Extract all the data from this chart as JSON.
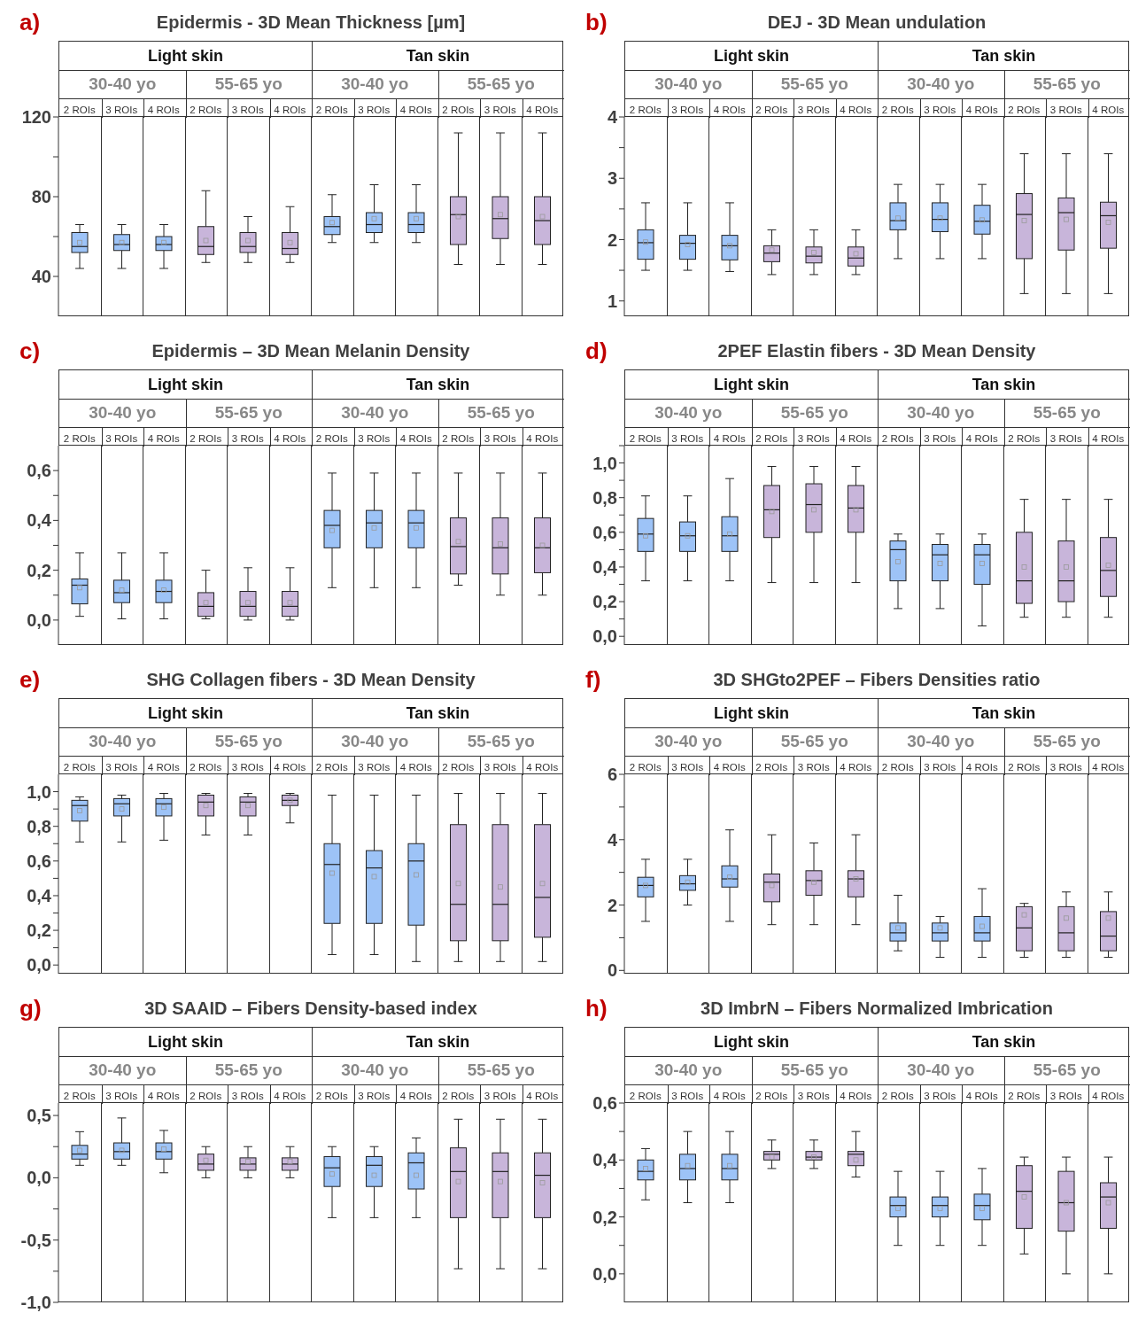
{
  "chart_data": [
    {
      "type": "box",
      "title": "Epidermis - 3D Mean Thickness [µm]",
      "annotations": [
        "a)",
        "Light skin",
        "Tan skin",
        "30-40 yo",
        "55-65 yo",
        "30-40 yo",
        "55-65 yo"
      ],
      "categories": [
        "2 ROIs",
        "3 ROIs",
        "4 ROIs",
        "2 ROIs",
        "3 ROIs",
        "4 ROIs",
        "2 ROIs",
        "3 ROIs",
        "4 ROIs",
        "2 ROIs",
        "3 ROIs",
        "4 ROIs"
      ],
      "ylim": [
        20,
        120
      ],
      "yticks": [
        40,
        {
          "value": 60,
          "label": null
        },
        80,
        {
          "value": 100,
          "label": null
        },
        120
      ],
      "series": [
        {
          "colors": [
            "#9dc3f7",
            "#9dc3f7",
            "#9dc3f7",
            "#c8b5da",
            "#c8b5da",
            "#c8b5da",
            "#9dc3f7",
            "#9dc3f7",
            "#9dc3f7",
            "#c8b5da",
            "#c8b5da",
            "#c8b5da"
          ],
          "boxes": [
            {
              "low": 44,
              "q1": 52,
              "median": 55,
              "q3": 62,
              "high": 66,
              "mean": 57
            },
            {
              "low": 44,
              "q1": 53,
              "median": 56,
              "q3": 61,
              "high": 66,
              "mean": 57
            },
            {
              "low": 44,
              "q1": 53,
              "median": 56,
              "q3": 60,
              "high": 66,
              "mean": 57
            },
            {
              "low": 47,
              "q1": 51,
              "median": 55,
              "q3": 65,
              "high": 83,
              "mean": 58
            },
            {
              "low": 47,
              "q1": 52,
              "median": 55,
              "q3": 62,
              "high": 70,
              "mean": 58
            },
            {
              "low": 47,
              "q1": 51,
              "median": 54,
              "q3": 62,
              "high": 75,
              "mean": 57
            },
            {
              "low": 57,
              "q1": 61,
              "median": 65,
              "q3": 70,
              "high": 81,
              "mean": 67
            },
            {
              "low": 57,
              "q1": 62,
              "median": 66,
              "q3": 72,
              "high": 86,
              "mean": 69
            },
            {
              "low": 57,
              "q1": 62,
              "median": 66,
              "q3": 72,
              "high": 86,
              "mean": 69
            },
            {
              "low": 46,
              "q1": 56,
              "median": 71,
              "q3": 80,
              "high": 112,
              "mean": 70
            },
            {
              "low": 46,
              "q1": 59,
              "median": 69,
              "q3": 80,
              "high": 112,
              "mean": 71
            },
            {
              "low": 46,
              "q1": 56,
              "median": 68,
              "q3": 80,
              "high": 112,
              "mean": 70
            }
          ]
        }
      ]
    },
    {
      "type": "box",
      "title": "DEJ - 3D Mean undulation",
      "annotations": [
        "b)",
        "Light skin",
        "Tan skin",
        "30-40 yo",
        "55-65 yo",
        "30-40 yo",
        "55-65 yo"
      ],
      "categories": [
        "2 ROIs",
        "3 ROIs",
        "4 ROIs",
        "2 ROIs",
        "3 ROIs",
        "4 ROIs",
        "2 ROIs",
        "3 ROIs",
        "4 ROIs",
        "2 ROIs",
        "3 ROIs",
        "4 ROIs"
      ],
      "ylim": [
        0.75,
        4
      ],
      "yticks": [
        1,
        {
          "value": 1.5,
          "label": null
        },
        2,
        {
          "value": 2.5,
          "label": null
        },
        3,
        {
          "value": 3.5,
          "label": null
        },
        4
      ],
      "series": [
        {
          "colors": [
            "#9dc3f7",
            "#9dc3f7",
            "#9dc3f7",
            "#c8b5da",
            "#c8b5da",
            "#c8b5da",
            "#9dc3f7",
            "#9dc3f7",
            "#9dc3f7",
            "#c8b5da",
            "#c8b5da",
            "#c8b5da"
          ],
          "boxes": [
            {
              "low": 1.5,
              "q1": 1.68,
              "median": 1.95,
              "q3": 2.16,
              "high": 2.6,
              "mean": 1.96
            },
            {
              "low": 1.5,
              "q1": 1.68,
              "median": 1.94,
              "q3": 2.07,
              "high": 2.6,
              "mean": 1.92
            },
            {
              "low": 1.48,
              "q1": 1.67,
              "median": 1.9,
              "q3": 2.07,
              "high": 2.6,
              "mean": 1.9
            },
            {
              "low": 1.43,
              "q1": 1.64,
              "median": 1.78,
              "q3": 1.9,
              "high": 2.16,
              "mean": 1.83
            },
            {
              "low": 1.43,
              "q1": 1.62,
              "median": 1.73,
              "q3": 1.88,
              "high": 2.16,
              "mean": 1.79
            },
            {
              "low": 1.43,
              "q1": 1.57,
              "median": 1.7,
              "q3": 1.88,
              "high": 2.16,
              "mean": 1.77
            },
            {
              "low": 1.69,
              "q1": 2.16,
              "median": 2.31,
              "q3": 2.6,
              "high": 2.9,
              "mean": 2.35
            },
            {
              "low": 1.69,
              "q1": 2.13,
              "median": 2.33,
              "q3": 2.6,
              "high": 2.9,
              "mean": 2.35
            },
            {
              "low": 1.69,
              "q1": 2.09,
              "median": 2.3,
              "q3": 2.56,
              "high": 2.9,
              "mean": 2.32
            },
            {
              "low": 1.12,
              "q1": 1.69,
              "median": 2.41,
              "q3": 2.75,
              "high": 3.4,
              "mean": 2.31
            },
            {
              "low": 1.12,
              "q1": 1.83,
              "median": 2.44,
              "q3": 2.68,
              "high": 3.4,
              "mean": 2.33
            },
            {
              "low": 1.12,
              "q1": 1.86,
              "median": 2.39,
              "q3": 2.61,
              "high": 3.4,
              "mean": 2.28
            }
          ]
        }
      ]
    },
    {
      "type": "box",
      "title": "Epidermis – 3D Mean Melanin Density",
      "annotations": [
        "c)",
        "Light skin",
        "Tan skin",
        "30-40 yo",
        "55-65 yo",
        "30-40 yo",
        "55-65 yo"
      ],
      "categories": [
        "2 ROIs",
        "3 ROIs",
        "4 ROIs",
        "2 ROIs",
        "3 ROIs",
        "4 ROIs",
        "2 ROIs",
        "3 ROIs",
        "4 ROIs",
        "2 ROIs",
        "3 ROIs",
        "4 ROIs"
      ],
      "ylim": [
        -0.1,
        0.7
      ],
      "yticks": [
        {
          "value": 0,
          "label": "0,0"
        },
        {
          "value": 0.1,
          "label": null
        },
        {
          "value": 0.2,
          "label": "0,2"
        },
        {
          "value": 0.3,
          "label": null
        },
        {
          "value": 0.4,
          "label": "0,4"
        },
        {
          "value": 0.5,
          "label": null
        },
        {
          "value": 0.6,
          "label": "0,6"
        }
      ],
      "series": [
        {
          "colors": [
            "#9dc3f7",
            "#9dc3f7",
            "#9dc3f7",
            "#c8b5da",
            "#c8b5da",
            "#c8b5da",
            "#9dc3f7",
            "#9dc3f7",
            "#9dc3f7",
            "#c8b5da",
            "#c8b5da",
            "#c8b5da"
          ],
          "boxes": [
            {
              "low": 0.015,
              "q1": 0.065,
              "median": 0.14,
              "q3": 0.165,
              "high": 0.27,
              "mean": 0.13
            },
            {
              "low": 0.005,
              "q1": 0.07,
              "median": 0.11,
              "q3": 0.16,
              "high": 0.27,
              "mean": 0.12
            },
            {
              "low": 0.005,
              "q1": 0.07,
              "median": 0.115,
              "q3": 0.16,
              "high": 0.27,
              "mean": 0.12
            },
            {
              "low": 0.005,
              "q1": 0.015,
              "median": 0.055,
              "q3": 0.11,
              "high": 0.2,
              "mean": 0.07
            },
            {
              "low": 0,
              "q1": 0.015,
              "median": 0.055,
              "q3": 0.115,
              "high": 0.21,
              "mean": 0.07
            },
            {
              "low": 0,
              "q1": 0.015,
              "median": 0.055,
              "q3": 0.115,
              "high": 0.21,
              "mean": 0.07
            },
            {
              "low": 0.13,
              "q1": 0.29,
              "median": 0.38,
              "q3": 0.44,
              "high": 0.59,
              "mean": 0.36
            },
            {
              "low": 0.13,
              "q1": 0.29,
              "median": 0.39,
              "q3": 0.44,
              "high": 0.59,
              "mean": 0.37
            },
            {
              "low": 0.13,
              "q1": 0.29,
              "median": 0.39,
              "q3": 0.44,
              "high": 0.59,
              "mean": 0.37
            },
            {
              "low": 0.14,
              "q1": 0.185,
              "median": 0.295,
              "q3": 0.41,
              "high": 0.59,
              "mean": 0.315
            },
            {
              "low": 0.1,
              "q1": 0.185,
              "median": 0.29,
              "q3": 0.41,
              "high": 0.59,
              "mean": 0.305
            },
            {
              "low": 0.1,
              "q1": 0.19,
              "median": 0.29,
              "q3": 0.41,
              "high": 0.59,
              "mean": 0.3
            }
          ]
        }
      ]
    },
    {
      "type": "box",
      "title": "2PEF Elastin fibers - 3D Mean Density",
      "annotations": [
        "d)",
        "Light skin",
        "Tan skin",
        "30-40 yo",
        "55-65 yo",
        "30-40 yo",
        "55-65 yo"
      ],
      "categories": [
        "2 ROIs",
        "3 ROIs",
        "4 ROIs",
        "2 ROIs",
        "3 ROIs",
        "4 ROIs",
        "2 ROIs",
        "3 ROIs",
        "4 ROIs",
        "2 ROIs",
        "3 ROIs",
        "4 ROIs"
      ],
      "ylim": [
        -0.05,
        1.1
      ],
      "yticks": [
        {
          "value": 0,
          "label": "0,0"
        },
        {
          "value": 0.1,
          "label": null
        },
        {
          "value": 0.2,
          "label": "0,2"
        },
        {
          "value": 0.3,
          "label": null
        },
        {
          "value": 0.4,
          "label": "0,4"
        },
        {
          "value": 0.5,
          "label": null
        },
        {
          "value": 0.6,
          "label": "0,6"
        },
        {
          "value": 0.7,
          "label": null
        },
        {
          "value": 0.8,
          "label": "0,8"
        },
        {
          "value": 0.9,
          "label": null
        },
        {
          "value": 1,
          "label": "1,0"
        },
        {
          "value": 1.1,
          "label": null
        }
      ],
      "series": [
        {
          "colors": [
            "#9dc3f7",
            "#9dc3f7",
            "#9dc3f7",
            "#c8b5da",
            "#c8b5da",
            "#c8b5da",
            "#9dc3f7",
            "#9dc3f7",
            "#9dc3f7",
            "#c8b5da",
            "#c8b5da",
            "#c8b5da"
          ],
          "boxes": [
            {
              "low": 0.32,
              "q1": 0.49,
              "median": 0.59,
              "q3": 0.68,
              "high": 0.81,
              "mean": 0.58
            },
            {
              "low": 0.32,
              "q1": 0.49,
              "median": 0.58,
              "q3": 0.66,
              "high": 0.81,
              "mean": 0.58
            },
            {
              "low": 0.32,
              "q1": 0.49,
              "median": 0.58,
              "q3": 0.69,
              "high": 0.91,
              "mean": 0.59
            },
            {
              "low": 0.31,
              "q1": 0.57,
              "median": 0.73,
              "q3": 0.87,
              "high": 0.98,
              "mean": 0.72
            },
            {
              "low": 0.31,
              "q1": 0.6,
              "median": 0.76,
              "q3": 0.88,
              "high": 0.98,
              "mean": 0.73
            },
            {
              "low": 0.31,
              "q1": 0.6,
              "median": 0.74,
              "q3": 0.87,
              "high": 0.98,
              "mean": 0.73
            },
            {
              "low": 0.16,
              "q1": 0.32,
              "median": 0.5,
              "q3": 0.55,
              "high": 0.59,
              "mean": 0.43
            },
            {
              "low": 0.16,
              "q1": 0.32,
              "median": 0.47,
              "q3": 0.53,
              "high": 0.59,
              "mean": 0.42
            },
            {
              "low": 0.06,
              "q1": 0.3,
              "median": 0.47,
              "q3": 0.53,
              "high": 0.59,
              "mean": 0.42
            },
            {
              "low": 0.11,
              "q1": 0.19,
              "median": 0.32,
              "q3": 0.6,
              "high": 0.79,
              "mean": 0.4
            },
            {
              "low": 0.11,
              "q1": 0.2,
              "median": 0.32,
              "q3": 0.55,
              "high": 0.79,
              "mean": 0.4
            },
            {
              "low": 0.11,
              "q1": 0.23,
              "median": 0.38,
              "q3": 0.57,
              "high": 0.79,
              "mean": 0.41
            }
          ]
        }
      ]
    },
    {
      "type": "box",
      "title": "SHG Collagen fibers - 3D Mean Density",
      "annotations": [
        "e)",
        "Light skin",
        "Tan skin",
        "30-40 yo",
        "55-65 yo",
        "30-40 yo",
        "55-65 yo"
      ],
      "categories": [
        "2 ROIs",
        "3 ROIs",
        "4 ROIs",
        "2 ROIs",
        "3 ROIs",
        "4 ROIs",
        "2 ROIs",
        "3 ROIs",
        "4 ROIs",
        "2 ROIs",
        "3 ROIs",
        "4 ROIs"
      ],
      "ylim": [
        -0.05,
        1.1
      ],
      "yticks": [
        {
          "value": 0,
          "label": "0,0"
        },
        {
          "value": 0.1,
          "label": null
        },
        {
          "value": 0.2,
          "label": "0,2"
        },
        {
          "value": 0.3,
          "label": null
        },
        {
          "value": 0.4,
          "label": "0,4"
        },
        {
          "value": 0.5,
          "label": null
        },
        {
          "value": 0.6,
          "label": "0,6"
        },
        {
          "value": 0.7,
          "label": null
        },
        {
          "value": 0.8,
          "label": "0,8"
        },
        {
          "value": 0.9,
          "label": null
        },
        {
          "value": 1,
          "label": "1,0"
        }
      ],
      "series": [
        {
          "colors": [
            "#9dc3f7",
            "#9dc3f7",
            "#9dc3f7",
            "#c8b5da",
            "#c8b5da",
            "#c8b5da",
            "#9dc3f7",
            "#9dc3f7",
            "#9dc3f7",
            "#c8b5da",
            "#c8b5da",
            "#c8b5da"
          ],
          "boxes": [
            {
              "low": 0.71,
              "q1": 0.83,
              "median": 0.92,
              "q3": 0.95,
              "high": 0.97,
              "mean": 0.89
            },
            {
              "low": 0.71,
              "q1": 0.86,
              "median": 0.93,
              "q3": 0.96,
              "high": 0.98,
              "mean": 0.9
            },
            {
              "low": 0.72,
              "q1": 0.86,
              "median": 0.93,
              "q3": 0.96,
              "high": 0.99,
              "mean": 0.91
            },
            {
              "low": 0.75,
              "q1": 0.86,
              "median": 0.94,
              "q3": 0.98,
              "high": 0.99,
              "mean": 0.92
            },
            {
              "low": 0.75,
              "q1": 0.86,
              "median": 0.94,
              "q3": 0.97,
              "high": 0.99,
              "mean": 0.92
            },
            {
              "low": 0.82,
              "q1": 0.92,
              "median": 0.95,
              "q3": 0.98,
              "high": 0.99,
              "mean": 0.95
            },
            {
              "low": 0.06,
              "q1": 0.24,
              "median": 0.58,
              "q3": 0.7,
              "high": 0.98,
              "mean": 0.53
            },
            {
              "low": 0.06,
              "q1": 0.24,
              "median": 0.56,
              "q3": 0.66,
              "high": 0.98,
              "mean": 0.51
            },
            {
              "low": 0.02,
              "q1": 0.23,
              "median": 0.6,
              "q3": 0.7,
              "high": 0.98,
              "mean": 0.52
            },
            {
              "low": 0.02,
              "q1": 0.14,
              "median": 0.35,
              "q3": 0.81,
              "high": 0.99,
              "mean": 0.47
            },
            {
              "low": 0.02,
              "q1": 0.14,
              "median": 0.35,
              "q3": 0.81,
              "high": 0.99,
              "mean": 0.45
            },
            {
              "low": 0.02,
              "q1": 0.16,
              "median": 0.39,
              "q3": 0.81,
              "high": 0.99,
              "mean": 0.47
            }
          ]
        }
      ]
    },
    {
      "type": "box",
      "title": "3D SHGto2PEF – Fibers Densities ratio",
      "annotations": [
        "f)",
        "Light skin",
        "Tan skin",
        "30-40 yo",
        "55-65 yo",
        "30-40 yo",
        "55-65 yo"
      ],
      "categories": [
        "2 ROIs",
        "3 ROIs",
        "4 ROIs",
        "2 ROIs",
        "3 ROIs",
        "4 ROIs",
        "2 ROIs",
        "3 ROIs",
        "4 ROIs",
        "2 ROIs",
        "3 ROIs",
        "4 ROIs"
      ],
      "ylim": [
        -0.1,
        6
      ],
      "yticks": [
        0,
        {
          "value": 1,
          "label": null
        },
        2,
        {
          "value": 3,
          "label": null
        },
        4,
        {
          "value": 5,
          "label": null
        },
        6
      ],
      "series": [
        {
          "colors": [
            "#9dc3f7",
            "#9dc3f7",
            "#9dc3f7",
            "#c8b5da",
            "#c8b5da",
            "#c8b5da",
            "#9dc3f7",
            "#9dc3f7",
            "#9dc3f7",
            "#c8b5da",
            "#c8b5da",
            "#c8b5da"
          ],
          "boxes": [
            {
              "low": 1.5,
              "q1": 2.25,
              "median": 2.6,
              "q3": 2.85,
              "high": 3.4,
              "mean": 2.6
            },
            {
              "low": 2,
              "q1": 2.45,
              "median": 2.65,
              "q3": 2.9,
              "high": 3.4,
              "mean": 2.7
            },
            {
              "low": 1.5,
              "q1": 2.55,
              "median": 2.8,
              "q3": 3.2,
              "high": 4.3,
              "mean": 2.85
            },
            {
              "low": 1.4,
              "q1": 2.1,
              "median": 2.7,
              "q3": 2.95,
              "high": 4.15,
              "mean": 2.6
            },
            {
              "low": 1.4,
              "q1": 2.3,
              "median": 2.75,
              "q3": 3.05,
              "high": 3.9,
              "mean": 2.7
            },
            {
              "low": 1.4,
              "q1": 2.25,
              "median": 2.8,
              "q3": 3.05,
              "high": 4.15,
              "mean": 2.8
            },
            {
              "low": 0.6,
              "q1": 0.9,
              "median": 1.15,
              "q3": 1.45,
              "high": 2.3,
              "mean": 1.3
            },
            {
              "low": 0.4,
              "q1": 0.9,
              "median": 1.15,
              "q3": 1.45,
              "high": 1.65,
              "mean": 1.3
            },
            {
              "low": 0.4,
              "q1": 0.9,
              "median": 1.15,
              "q3": 1.65,
              "high": 2.5,
              "mean": 1.35
            },
            {
              "low": 0.4,
              "q1": 0.6,
              "median": 1.3,
              "q3": 1.95,
              "high": 2.05,
              "mean": 1.7
            },
            {
              "low": 0.4,
              "q1": 0.6,
              "median": 1.15,
              "q3": 1.95,
              "high": 2.4,
              "mean": 1.6
            },
            {
              "low": 0.4,
              "q1": 0.6,
              "median": 1.05,
              "q3": 1.8,
              "high": 2.4,
              "mean": 1.6
            }
          ]
        }
      ]
    },
    {
      "type": "box",
      "title": "3D SAAID – Fibers Density-based index",
      "annotations": [
        "g)",
        "Light skin",
        "Tan skin",
        "30-40 yo",
        "55-65 yo",
        "30-40 yo",
        "55-65 yo"
      ],
      "categories": [
        "2 ROIs",
        "3 ROIs",
        "4 ROIs",
        "2 ROIs",
        "3 ROIs",
        "4 ROIs",
        "2 ROIs",
        "3 ROIs",
        "4 ROIs",
        "2 ROIs",
        "3 ROIs",
        "4 ROIs"
      ],
      "ylim": [
        -1,
        0.6
      ],
      "yticks": [
        {
          "value": -1,
          "label": "-1,0"
        },
        {
          "value": -0.75,
          "label": null
        },
        {
          "value": -0.5,
          "label": "-0,5"
        },
        {
          "value": -0.25,
          "label": null
        },
        {
          "value": 0,
          "label": "0,0"
        },
        {
          "value": 0.25,
          "label": null
        },
        {
          "value": 0.5,
          "label": "0,5"
        }
      ],
      "series": [
        {
          "colors": [
            "#9dc3f7",
            "#9dc3f7",
            "#9dc3f7",
            "#c8b5da",
            "#c8b5da",
            "#c8b5da",
            "#9dc3f7",
            "#9dc3f7",
            "#9dc3f7",
            "#c8b5da",
            "#c8b5da",
            "#c8b5da"
          ],
          "boxes": [
            {
              "low": 0.1,
              "q1": 0.15,
              "median": 0.19,
              "q3": 0.26,
              "high": 0.37,
              "mean": 0.22
            },
            {
              "low": 0.1,
              "q1": 0.15,
              "median": 0.21,
              "q3": 0.28,
              "high": 0.48,
              "mean": 0.22
            },
            {
              "low": 0.04,
              "q1": 0.15,
              "median": 0.21,
              "q3": 0.28,
              "high": 0.38,
              "mean": 0.23
            },
            {
              "low": 0,
              "q1": 0.06,
              "median": 0.11,
              "q3": 0.19,
              "high": 0.25,
              "mean": 0.14
            },
            {
              "low": 0,
              "q1": 0.06,
              "median": 0.11,
              "q3": 0.16,
              "high": 0.25,
              "mean": 0.13
            },
            {
              "low": 0,
              "q1": 0.06,
              "median": 0.11,
              "q3": 0.16,
              "high": 0.25,
              "mean": 0.13
            },
            {
              "low": -0.32,
              "q1": -0.07,
              "median": 0.08,
              "q3": 0.17,
              "high": 0.25,
              "mean": 0.03
            },
            {
              "low": -0.32,
              "q1": -0.07,
              "median": 0.1,
              "q3": 0.17,
              "high": 0.25,
              "mean": 0.02
            },
            {
              "low": -0.32,
              "q1": -0.09,
              "median": 0.12,
              "q3": 0.2,
              "high": 0.32,
              "mean": 0.02
            },
            {
              "low": -0.73,
              "q1": -0.32,
              "median": 0.05,
              "q3": 0.24,
              "high": 0.47,
              "mean": -0.03
            },
            {
              "low": -0.73,
              "q1": -0.32,
              "median": 0.05,
              "q3": 0.2,
              "high": 0.47,
              "mean": -0.03
            },
            {
              "low": -0.73,
              "q1": -0.32,
              "median": 0.02,
              "q3": 0.2,
              "high": 0.47,
              "mean": -0.04
            }
          ]
        }
      ]
    },
    {
      "type": "box",
      "title": "3D ImbrN – Fibers Normalized Imbrication",
      "annotations": [
        "h)",
        "Light skin",
        "Tan skin",
        "30-40 yo",
        "55-65 yo",
        "30-40 yo",
        "55-65 yo"
      ],
      "categories": [
        "2 ROIs",
        "3 ROIs",
        "4 ROIs",
        "2 ROIs",
        "3 ROIs",
        "4 ROIs",
        "2 ROIs",
        "3 ROIs",
        "4 ROIs",
        "2 ROIs",
        "3 ROIs",
        "4 ROIs"
      ],
      "ylim": [
        -0.1,
        0.6
      ],
      "yticks": [
        {
          "value": 0,
          "label": "0,0"
        },
        {
          "value": 0.1,
          "label": null
        },
        {
          "value": 0.2,
          "label": "0,2"
        },
        {
          "value": 0.3,
          "label": null
        },
        {
          "value": 0.4,
          "label": "0,4"
        },
        {
          "value": 0.5,
          "label": null
        },
        {
          "value": 0.6,
          "label": "0,6"
        }
      ],
      "series": [
        {
          "colors": [
            "#9dc3f7",
            "#9dc3f7",
            "#9dc3f7",
            "#c8b5da",
            "#c8b5da",
            "#c8b5da",
            "#9dc3f7",
            "#9dc3f7",
            "#9dc3f7",
            "#c8b5da",
            "#c8b5da",
            "#c8b5da"
          ],
          "boxes": [
            {
              "low": 0.26,
              "q1": 0.33,
              "median": 0.36,
              "q3": 0.4,
              "high": 0.44,
              "mean": 0.37
            },
            {
              "low": 0.25,
              "q1": 0.33,
              "median": 0.37,
              "q3": 0.42,
              "high": 0.5,
              "mean": 0.38
            },
            {
              "low": 0.25,
              "q1": 0.33,
              "median": 0.37,
              "q3": 0.42,
              "high": 0.5,
              "mean": 0.38
            },
            {
              "low": 0.37,
              "q1": 0.4,
              "median": 0.42,
              "q3": 0.43,
              "high": 0.47,
              "mean": 0.41
            },
            {
              "low": 0.37,
              "q1": 0.4,
              "median": 0.41,
              "q3": 0.43,
              "high": 0.47,
              "mean": 0.41
            },
            {
              "low": 0.34,
              "q1": 0.38,
              "median": 0.42,
              "q3": 0.43,
              "high": 0.5,
              "mean": 0.4
            },
            {
              "low": 0.1,
              "q1": 0.2,
              "median": 0.24,
              "q3": 0.27,
              "high": 0.36,
              "mean": 0.23
            },
            {
              "low": 0.1,
              "q1": 0.2,
              "median": 0.24,
              "q3": 0.27,
              "high": 0.36,
              "mean": 0.23
            },
            {
              "low": 0.1,
              "q1": 0.19,
              "median": 0.24,
              "q3": 0.28,
              "high": 0.37,
              "mean": 0.23
            },
            {
              "low": 0.07,
              "q1": 0.16,
              "median": 0.29,
              "q3": 0.38,
              "high": 0.41,
              "mean": 0.27
            },
            {
              "low": 0,
              "q1": 0.15,
              "median": 0.25,
              "q3": 0.36,
              "high": 0.41,
              "mean": 0.25
            },
            {
              "low": 0,
              "q1": 0.16,
              "median": 0.27,
              "q3": 0.32,
              "high": 0.41,
              "mean": 0.25
            }
          ]
        }
      ]
    }
  ]
}
